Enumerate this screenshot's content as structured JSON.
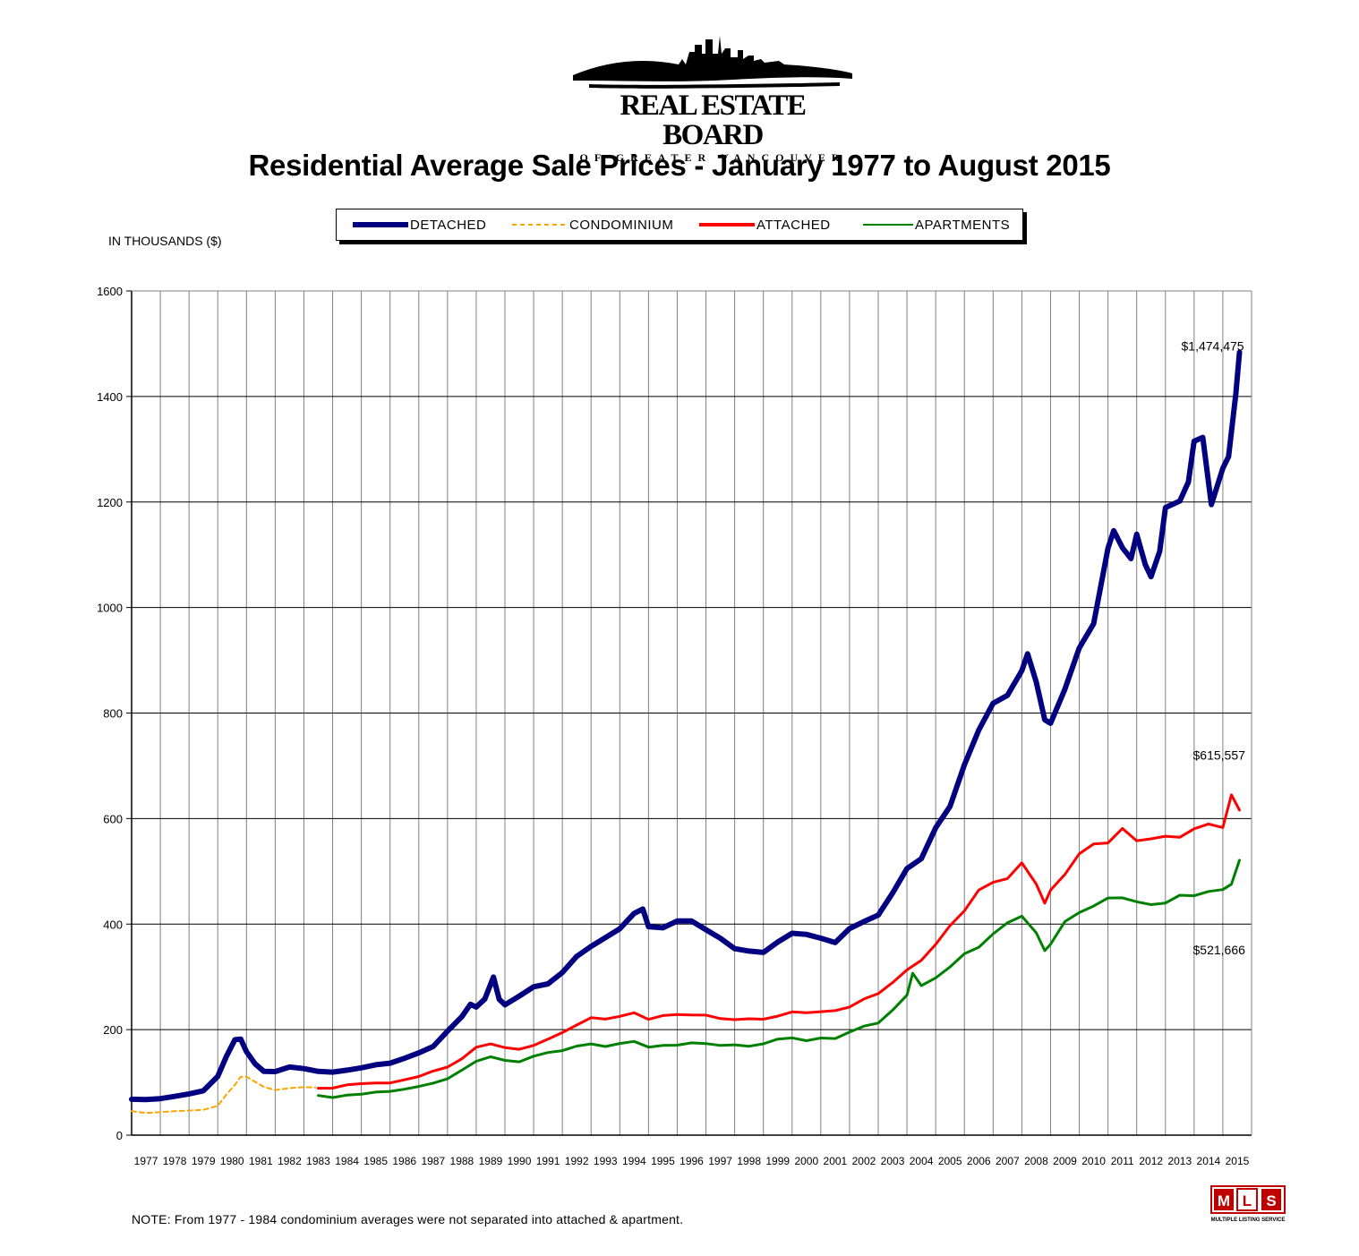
{
  "logo": {
    "name": "REAL ESTATE BOARD",
    "subtitle": "OF GREATER VANCOUVER"
  },
  "mls_logo": {
    "text": "MULTIPLE LISTING SERVICE"
  },
  "note": "NOTE:  From 1977 - 1984 condominium averages were not separated into attached & apartment.",
  "chart_data": {
    "type": "line",
    "title": "Residential Average Sale Prices  -  January 1977 to August 2015",
    "ylabel": "IN THOUSANDS ($)",
    "xlabel": "",
    "ylim": [
      0,
      1600
    ],
    "yticks": [
      "0",
      "200",
      "400",
      "600",
      "800",
      "1000",
      "1200",
      "1400",
      "1600"
    ],
    "categories": [
      "1977",
      "1978",
      "1979",
      "1980",
      "1981",
      "1982",
      "1983",
      "1984",
      "1985",
      "1986",
      "1987",
      "1988",
      "1989",
      "1990",
      "1991",
      "1992",
      "1993",
      "1994",
      "1995",
      "1996",
      "1997",
      "1998",
      "1999",
      "2000",
      "2001",
      "2002",
      "2003",
      "2004",
      "2005",
      "2006",
      "2007",
      "2008",
      "2009",
      "2010",
      "2011",
      "2012",
      "2013",
      "2014",
      "2015"
    ],
    "grid": true,
    "legend_position": "top",
    "series": [
      {
        "name": "DETACHED",
        "color": "#000080",
        "style": "solid-thick",
        "x": [
          1977.0,
          1977.5,
          1978.0,
          1978.5,
          1979.0,
          1979.5,
          1980.0,
          1980.3,
          1980.6,
          1980.8,
          1981.0,
          1981.3,
          1981.6,
          1982.0,
          1982.5,
          1983.0,
          1983.5,
          1984.0,
          1984.5,
          1985.0,
          1985.5,
          1986.0,
          1986.5,
          1987.0,
          1987.5,
          1988.0,
          1988.5,
          1988.8,
          1989.0,
          1989.3,
          1989.6,
          1989.8,
          1990.0,
          1990.5,
          1991.0,
          1991.5,
          1992.0,
          1992.5,
          1993.0,
          1993.5,
          1994.0,
          1994.5,
          1994.8,
          1995.0,
          1995.5,
          1996.0,
          1996.5,
          1997.0,
          1997.5,
          1998.0,
          1998.5,
          1999.0,
          1999.5,
          2000.0,
          2000.5,
          2001.0,
          2001.5,
          2002.0,
          2002.5,
          2003.0,
          2003.5,
          2004.0,
          2004.5,
          2005.0,
          2005.5,
          2006.0,
          2006.5,
          2007.0,
          2007.5,
          2008.0,
          2008.2,
          2008.5,
          2008.8,
          2009.0,
          2009.5,
          2010.0,
          2010.5,
          2011.0,
          2011.2,
          2011.5,
          2011.8,
          2012.0,
          2012.3,
          2012.5,
          2012.8,
          2013.0,
          2013.5,
          2013.8,
          2014.0,
          2014.3,
          2014.6,
          2015.0,
          2015.2,
          2015.45,
          2015.58
        ],
        "values": [
          68,
          67,
          70,
          73,
          78,
          85,
          110,
          150,
          182,
          180,
          160,
          135,
          120,
          122,
          128,
          126,
          122,
          118,
          124,
          128,
          132,
          138,
          145,
          155,
          170,
          195,
          225,
          250,
          240,
          260,
          300,
          255,
          250,
          262,
          280,
          290,
          305,
          340,
          360,
          370,
          395,
          420,
          425,
          400,
          390,
          405,
          410,
          385,
          375,
          355,
          345,
          350,
          365,
          380,
          385,
          370,
          365,
          395,
          400,
          420,
          460,
          500,
          530,
          580,
          620,
          710,
          760,
          820,
          840,
          870,
          920,
          860,
          780,
          790,
          840,
          920,
          980,
          1100,
          1150,
          1120,
          1080,
          1150,
          1080,
          1050,
          1120,
          1180,
          1200,
          1250,
          1300,
          1330,
          1200,
          1250,
          1300,
          1400,
          1474
        ]
      },
      {
        "name": "CONDOMINIUM",
        "color": "#ffa500",
        "style": "dashed",
        "x": [
          1977.0,
          1977.5,
          1978.0,
          1978.5,
          1979.0,
          1979.5,
          1980.0,
          1980.3,
          1980.6,
          1980.8,
          1981.0,
          1981.3,
          1981.6,
          1982.0,
          1982.5,
          1983.0,
          1983.4
        ],
        "values": [
          45,
          42,
          44,
          45,
          47,
          48,
          55,
          78,
          95,
          110,
          112,
          100,
          92,
          86,
          88,
          92,
          90
        ]
      },
      {
        "name": "ATTACHED",
        "color": "#ff0000",
        "style": "solid",
        "x": [
          1983.5,
          1984.0,
          1984.5,
          1985.0,
          1985.5,
          1986.0,
          1986.5,
          1987.0,
          1987.5,
          1988.0,
          1988.5,
          1989.0,
          1989.5,
          1990.0,
          1990.5,
          1991.0,
          1991.5,
          1992.0,
          1992.5,
          1993.0,
          1993.5,
          1994.0,
          1994.5,
          1995.0,
          1995.5,
          1996.0,
          1996.5,
          1997.0,
          1997.5,
          1998.0,
          1998.5,
          1999.0,
          1999.5,
          2000.0,
          2000.5,
          2001.0,
          2001.5,
          2002.0,
          2002.5,
          2003.0,
          2003.5,
          2004.0,
          2004.5,
          2005.0,
          2005.5,
          2006.0,
          2006.5,
          2007.0,
          2007.5,
          2008.0,
          2008.5,
          2008.8,
          2009.0,
          2009.5,
          2010.0,
          2010.5,
          2011.0,
          2011.5,
          2012.0,
          2012.5,
          2013.0,
          2013.5,
          2014.0,
          2014.5,
          2015.0,
          2015.3,
          2015.58
        ],
        "values": [
          88,
          90,
          95,
          97,
          100,
          98,
          105,
          112,
          120,
          130,
          145,
          165,
          175,
          165,
          162,
          172,
          180,
          195,
          210,
          220,
          222,
          225,
          230,
          222,
          225,
          228,
          230,
          225,
          222,
          220,
          218,
          222,
          225,
          232,
          235,
          232,
          236,
          245,
          255,
          270,
          290,
          310,
          335,
          360,
          395,
          430,
          460,
          480,
          490,
          510,
          480,
          440,
          460,
          500,
          530,
          550,
          560,
          575,
          560,
          565,
          560,
          570,
          580,
          585,
          590,
          640,
          615
        ]
      },
      {
        "name": "APARTMENTS",
        "color": "#008000",
        "style": "solid",
        "x": [
          1983.5,
          1984.0,
          1984.5,
          1985.0,
          1985.5,
          1986.0,
          1986.5,
          1987.0,
          1987.5,
          1988.0,
          1988.5,
          1989.0,
          1989.5,
          1990.0,
          1990.5,
          1991.0,
          1991.5,
          1992.0,
          1992.5,
          1993.0,
          1993.5,
          1994.0,
          1994.5,
          1995.0,
          1995.5,
          1996.0,
          1996.5,
          1997.0,
          1997.5,
          1998.0,
          1998.5,
          1999.0,
          1999.5,
          2000.0,
          2000.5,
          2001.0,
          2001.5,
          2002.0,
          2002.5,
          2003.0,
          2003.5,
          2004.0,
          2004.2,
          2004.5,
          2005.0,
          2005.5,
          2006.0,
          2006.5,
          2007.0,
          2007.5,
          2008.0,
          2008.5,
          2008.8,
          2009.0,
          2009.5,
          2010.0,
          2010.5,
          2011.0,
          2011.5,
          2012.0,
          2012.5,
          2013.0,
          2013.5,
          2014.0,
          2014.5,
          2015.0,
          2015.3,
          2015.58
        ],
        "values": [
          75,
          72,
          75,
          78,
          82,
          82,
          88,
          92,
          98,
          108,
          122,
          140,
          150,
          140,
          140,
          150,
          155,
          162,
          168,
          172,
          170,
          172,
          178,
          168,
          168,
          172,
          175,
          172,
          172,
          170,
          168,
          175,
          180,
          185,
          180,
          182,
          185,
          195,
          205,
          215,
          235,
          265,
          310,
          280,
          300,
          320,
          340,
          360,
          380,
          400,
          420,
          380,
          350,
          365,
          400,
          425,
          435,
          445,
          455,
          440,
          435,
          445,
          450,
          455,
          465,
          460,
          480,
          521
        ]
      }
    ],
    "annotations": [
      {
        "text": "$1,474,475",
        "series": "DETACHED"
      },
      {
        "text": "$615,557",
        "series": "ATTACHED"
      },
      {
        "text": "$521,666",
        "series": "APARTMENTS"
      }
    ]
  }
}
